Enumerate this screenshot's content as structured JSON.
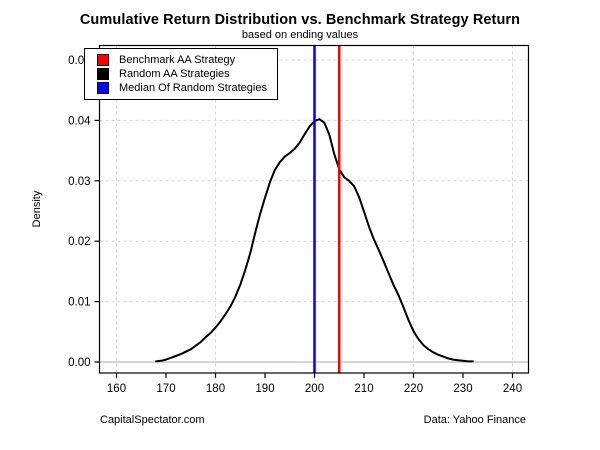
{
  "title": "Cumulative Return Distribution vs. Benchmark Strategy Return",
  "subtitle": "based on ending values",
  "footer": {
    "left": "CapitalSpectator.com",
    "right": "Data: Yahoo Finance"
  },
  "chart_data": {
    "type": "line",
    "title": "Cumulative Return Distribution vs. Benchmark Strategy Return",
    "subtitle": "based on ending values",
    "xlabel": "",
    "ylabel": "Density",
    "xlim": [
      156.5,
      243.5
    ],
    "ylim": [
      0,
      0.052
    ],
    "grid": "dashed-gray",
    "legend_position": "top-left",
    "x_ticks": [
      160,
      170,
      180,
      190,
      200,
      210,
      220,
      230,
      240
    ],
    "y_ticks": [
      0.0,
      0.01,
      0.02,
      0.03,
      0.04,
      0.05
    ],
    "x_gridlines": [
      160,
      180,
      200,
      220,
      240
    ],
    "y_gridlines": [
      0.01,
      0.02,
      0.03,
      0.04,
      0.05
    ],
    "zero_line_y": 0,
    "series": [
      {
        "name": "Random AA Strategies",
        "kind": "density-curve",
        "color": "#000000",
        "x": [
          168,
          169,
          170,
          171,
          172,
          173,
          174,
          175,
          176,
          177,
          178,
          179,
          180,
          181,
          182,
          183,
          184,
          185,
          186,
          187,
          188,
          189,
          190,
          191,
          192,
          193,
          194,
          195,
          196,
          197,
          198,
          199,
          200,
          201,
          202,
          203,
          204,
          205,
          206,
          207,
          208,
          209,
          210,
          211,
          212,
          213,
          214,
          215,
          216,
          217,
          218,
          219,
          220,
          221,
          222,
          223,
          224,
          225,
          226,
          227,
          228,
          229,
          230,
          231,
          232
        ],
        "y": [
          0.0001,
          0.0002,
          0.0004,
          0.0007,
          0.001,
          0.0013,
          0.0017,
          0.0021,
          0.0027,
          0.0033,
          0.0041,
          0.0048,
          0.0057,
          0.0067,
          0.0079,
          0.0092,
          0.0108,
          0.0128,
          0.0152,
          0.018,
          0.0213,
          0.0245,
          0.0272,
          0.0298,
          0.0318,
          0.0331,
          0.034,
          0.0346,
          0.0353,
          0.0363,
          0.0377,
          0.039,
          0.0399,
          0.0402,
          0.0396,
          0.0376,
          0.0344,
          0.0319,
          0.0306,
          0.03,
          0.0291,
          0.0273,
          0.0249,
          0.0224,
          0.0203,
          0.0185,
          0.0166,
          0.0146,
          0.0127,
          0.011,
          0.009,
          0.0069,
          0.0051,
          0.0038,
          0.0028,
          0.0021,
          0.0016,
          0.0012,
          0.0009,
          0.0006,
          0.0004,
          0.0003,
          0.0002,
          0.0001,
          0.0001
        ]
      },
      {
        "name": "Median Of Random Strategies",
        "kind": "vline",
        "color": "#0000FF",
        "x": 200
      },
      {
        "name": "Benchmark AA Strategy",
        "kind": "vline",
        "color": "#FF0000",
        "x": 205
      }
    ],
    "legend": [
      {
        "label": "Benchmark AA Strategy",
        "color": "#FF0000"
      },
      {
        "label": "Random AA Strategies",
        "color": "#000000"
      },
      {
        "label": "Median Of Random Strategies",
        "color": "#0000FF"
      }
    ]
  }
}
